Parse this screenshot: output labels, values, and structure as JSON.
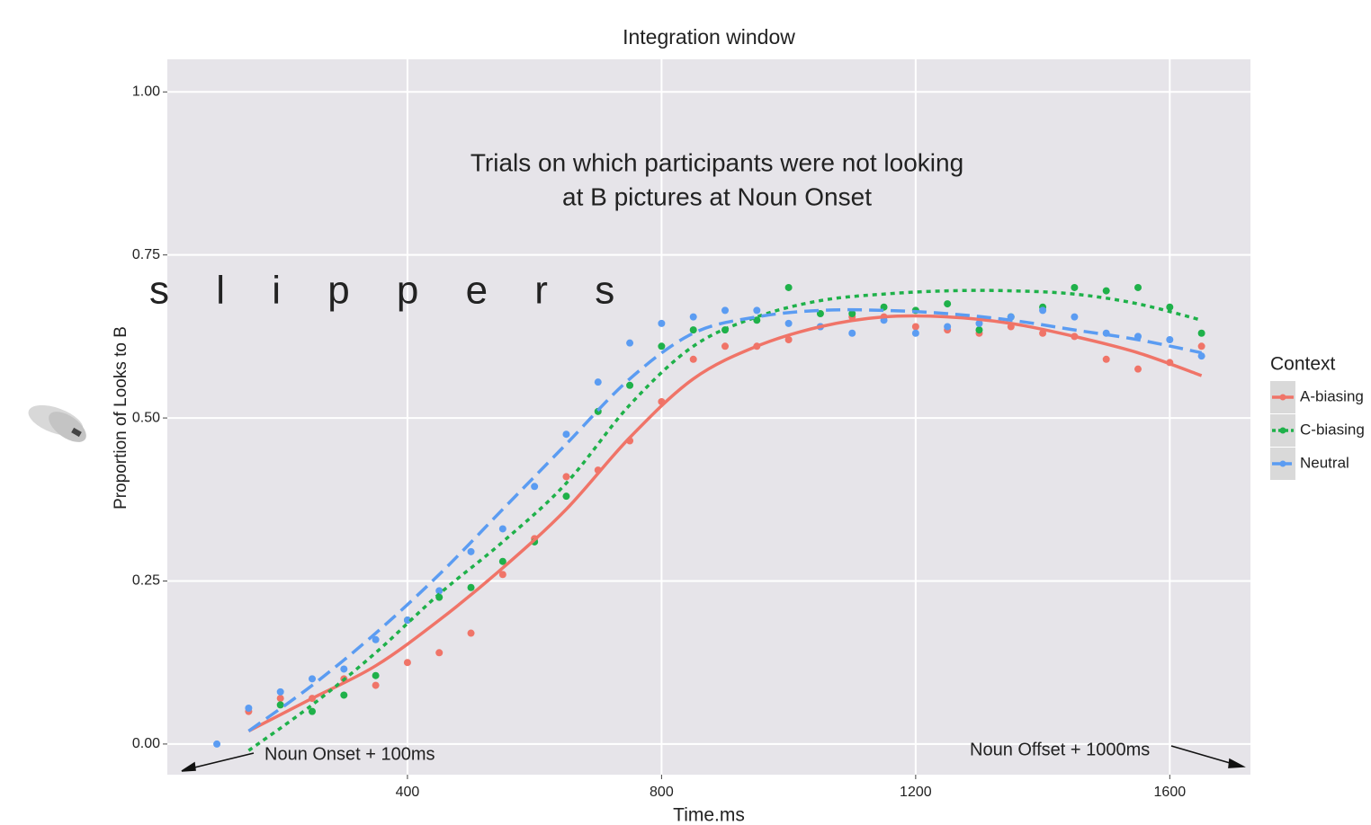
{
  "chart_data": {
    "type": "scatter-smooth",
    "title": "Integration window",
    "x_label": "Time.ms",
    "y_label": "Proportion of Looks to B",
    "legend_title": "Context",
    "annotations": [
      "Trials on which participants were not looking",
      "at B pictures at Noun Onset",
      "s l i p p e r s",
      "Noun Onset + 100ms",
      "Noun Offset + 1000ms"
    ],
    "xlim": [
      22,
      1727
    ],
    "ylim": [
      -0.047,
      1.05
    ],
    "xticks": [
      400,
      800,
      1200,
      1600
    ],
    "yticks": [
      {
        "value": 0,
        "label": "0.00"
      },
      {
        "value": 0.25,
        "label": "0.25"
      },
      {
        "value": 0.5,
        "label": "0.50"
      },
      {
        "value": 0.75,
        "label": "0.75"
      },
      {
        "value": 1,
        "label": "1.00"
      }
    ],
    "grid": true,
    "x": [
      100,
      150,
      200,
      250,
      300,
      350,
      400,
      450,
      500,
      550,
      600,
      650,
      700,
      750,
      800,
      850,
      900,
      950,
      1000,
      1050,
      1100,
      1150,
      1200,
      1250,
      1300,
      1350,
      1400,
      1450,
      1500,
      1550,
      1600,
      1650
    ],
    "fit_x": [
      150,
      250,
      350,
      450,
      550,
      650,
      750,
      850,
      950,
      1050,
      1150,
      1250,
      1350,
      1450,
      1550,
      1650
    ],
    "series": [
      {
        "name": "A-biasing",
        "color": "#f07468",
        "dash": "solid",
        "values": [
          null,
          0.05,
          0.07,
          0.07,
          0.1,
          0.09,
          0.125,
          0.14,
          0.17,
          0.26,
          0.315,
          0.41,
          0.42,
          0.465,
          0.525,
          0.59,
          0.61,
          0.61,
          0.62,
          0.64,
          0.655,
          0.655,
          0.64,
          0.635,
          0.63,
          0.64,
          0.63,
          0.625,
          0.59,
          0.575,
          0.585,
          0.61
        ],
        "fit": [
          0.02,
          0.07,
          0.12,
          0.19,
          0.27,
          0.36,
          0.47,
          0.56,
          0.61,
          0.64,
          0.655,
          0.655,
          0.645,
          0.625,
          0.6,
          0.565
        ]
      },
      {
        "name": "C-biasing",
        "color": "#1fb14a",
        "dash": "dotted",
        "values": [
          null,
          null,
          0.06,
          0.05,
          0.075,
          0.105,
          0.19,
          0.225,
          0.24,
          0.28,
          0.31,
          0.38,
          0.51,
          0.55,
          0.61,
          0.635,
          0.635,
          0.65,
          0.7,
          0.66,
          0.66,
          0.67,
          0.665,
          0.675,
          0.635,
          0.655,
          0.67,
          0.7,
          0.695,
          0.7,
          0.67,
          0.63
        ],
        "fit": [
          -0.01,
          0.06,
          0.14,
          0.23,
          0.31,
          0.4,
          0.52,
          0.61,
          0.655,
          0.68,
          0.69,
          0.695,
          0.695,
          0.69,
          0.675,
          0.65
        ]
      },
      {
        "name": "Neutral",
        "color": "#5b9cf2",
        "dash": "dashed",
        "values": [
          0,
          0.055,
          0.08,
          0.1,
          0.115,
          0.16,
          0.19,
          0.235,
          0.295,
          0.33,
          0.395,
          0.475,
          0.555,
          0.615,
          0.645,
          0.655,
          0.665,
          0.665,
          0.645,
          0.64,
          0.63,
          0.65,
          0.63,
          0.64,
          0.645,
          0.655,
          0.665,
          0.655,
          0.63,
          0.625,
          0.62,
          0.595
        ],
        "fit": [
          0.02,
          0.09,
          0.17,
          0.26,
          0.36,
          0.46,
          0.56,
          0.63,
          0.655,
          0.665,
          0.665,
          0.66,
          0.65,
          0.635,
          0.62,
          0.6
        ]
      }
    ]
  }
}
